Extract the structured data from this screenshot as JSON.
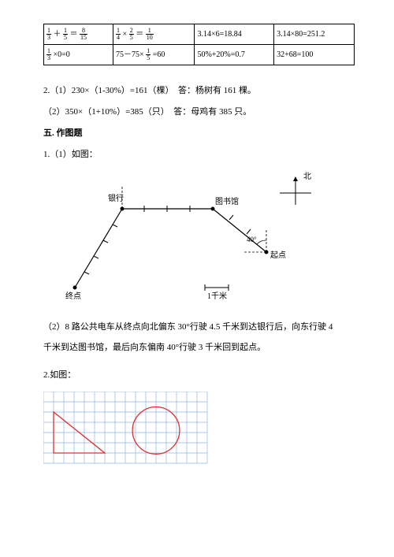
{
  "table": {
    "rows": [
      [
        {
          "type": "frac_sum",
          "a_n": "1",
          "a_d": "3",
          "b_n": "1",
          "b_d": "5",
          "r_n": "8",
          "r_d": "15"
        },
        {
          "type": "frac_mul",
          "a_n": "1",
          "a_d": "4",
          "b_n": "2",
          "b_d": "5",
          "r_n": "1",
          "r_d": "10"
        },
        {
          "type": "text",
          "val": "3.14×6=18.84"
        },
        {
          "type": "text",
          "val": "3.14×80=251.2"
        }
      ],
      [
        {
          "type": "frac_zero",
          "a_n": "1",
          "a_d": "3",
          "r": "0"
        },
        {
          "type": "frac_sub",
          "k": "75",
          "a_n": "1",
          "a_d": "5",
          "r": "60"
        },
        {
          "type": "text",
          "val": "50%+20%=0.7"
        },
        {
          "type": "text",
          "val": "32+68=100"
        }
      ]
    ]
  },
  "p2_1": "2.（1）230×（1-30%）=161（棵）　答：杨树有 161 棵。",
  "p2_2": "（2）350×（1+10%）=385（只）　答：母鸡有 385 只。",
  "sec5": "五. 作图题",
  "p1_1": "1.（1）如图：",
  "diagram": {
    "labels": {
      "north": "北",
      "bank": "银行",
      "library": "图书馆",
      "start": "起点",
      "end": "终点",
      "scale": "1千米",
      "angle": "40°"
    },
    "stroke": "#000000",
    "arrow": "#000000"
  },
  "p1_2": "（2）8 路公共电车从终点向北偏东 30°行驶 4.5 千米到达银行后，向东行驶 4",
  "p1_2b": "千米到达图书馆，最后向东偏南 40°行驶 3 千米回到起点。",
  "p2": "2.如图：",
  "grid": {
    "grid_color": "#8fb8e0",
    "shape_color": "#e03030",
    "bg": "#ffffff",
    "cols": 16,
    "rows": 7,
    "cell": 13
  }
}
